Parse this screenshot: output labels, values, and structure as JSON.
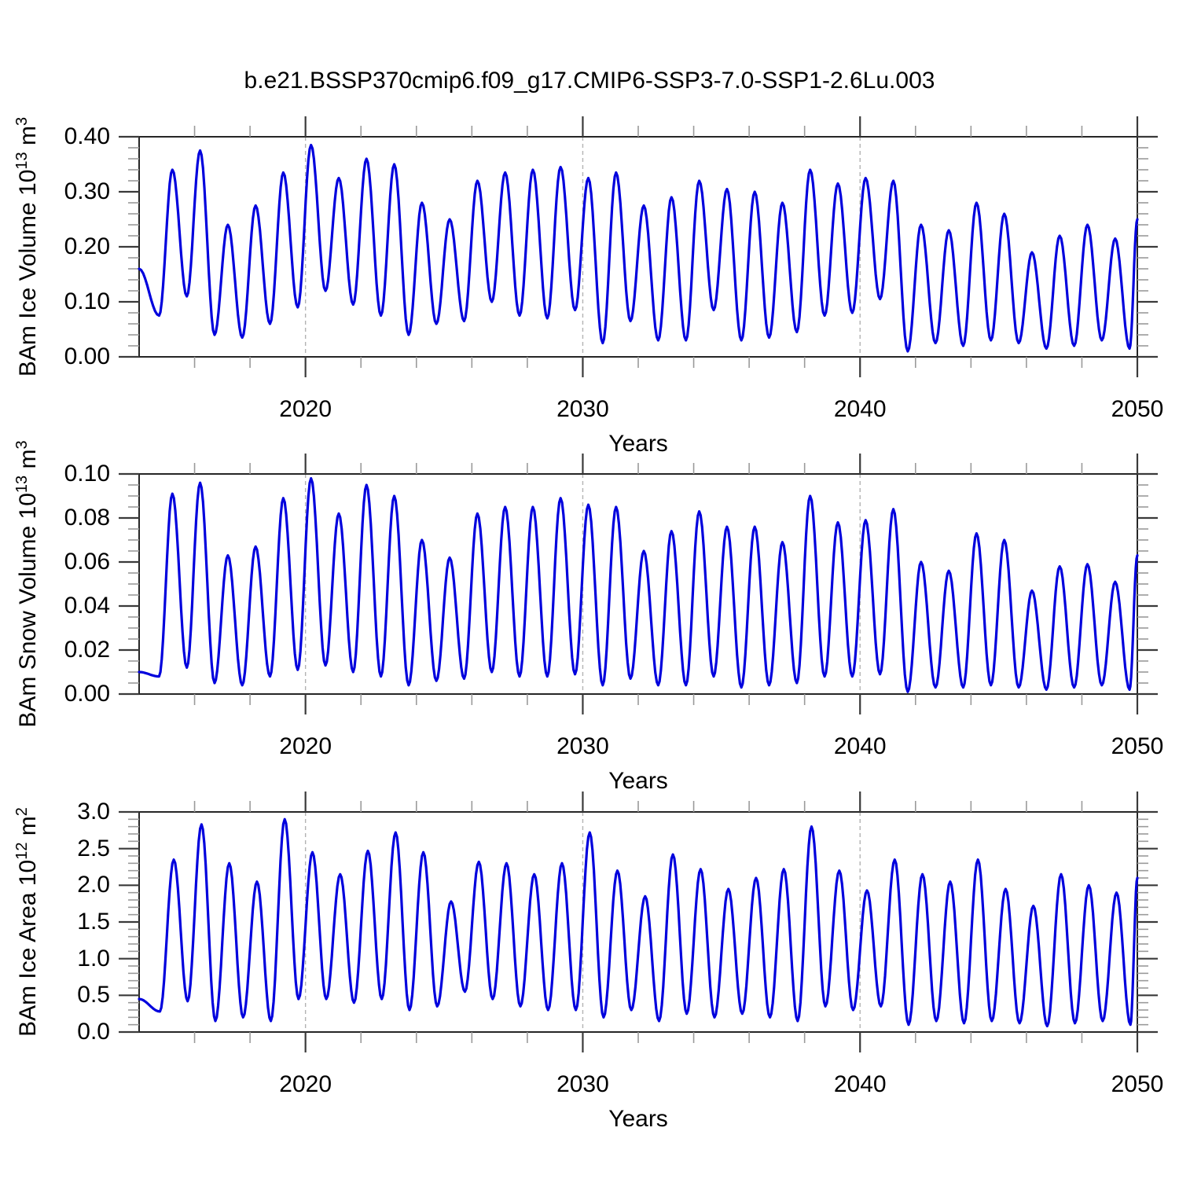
{
  "title": "b.e21.BSSP370cmip6.f09_g17.CMIP6-SSP3-7.0-SSP1-2.6Lu.003",
  "line_color": "#0000dd",
  "gridline_color": "#b3b3b3",
  "axis_color": "#262626",
  "chart_data": [
    {
      "type": "line",
      "ylabel": "BAm Ice Volume 10^13 m^3",
      "ylabel_segments": [
        "BAm Ice Volume 10",
        {
          "sup": "13"
        },
        " m",
        {
          "sup": "3"
        }
      ],
      "xlabel": "Years",
      "xlim": [
        2014,
        2050
      ],
      "ylim": [
        0.0,
        0.4
      ],
      "xticks": [
        2020,
        2030,
        2040,
        2050
      ],
      "xtick_labels": [
        "2020",
        "2030",
        "2040",
        "2050"
      ],
      "x_minor_step": 2,
      "gridlines_x": [
        2020,
        2030,
        2040
      ],
      "ytick_values": [
        0.0,
        0.1,
        0.2,
        0.3,
        0.4
      ],
      "yticks": [
        "0.00",
        "0.10",
        "0.20",
        "0.30",
        "0.40"
      ],
      "y_minor_step": 0.02,
      "grid": "dashed-vertical-at-decades",
      "legend": "none",
      "series": [
        {
          "name": "BAm Ice Volume",
          "color": "#0000dd",
          "extremes": [
            [
              2014.0,
              0.16
            ],
            [
              2014.72,
              0.075
            ],
            [
              2015.2,
              0.34
            ],
            [
              2015.72,
              0.11
            ],
            [
              2016.2,
              0.375
            ],
            [
              2016.72,
              0.04
            ],
            [
              2017.2,
              0.24
            ],
            [
              2017.72,
              0.035
            ],
            [
              2018.2,
              0.275
            ],
            [
              2018.72,
              0.06
            ],
            [
              2019.2,
              0.335
            ],
            [
              2019.72,
              0.09
            ],
            [
              2020.2,
              0.385
            ],
            [
              2020.72,
              0.12
            ],
            [
              2021.2,
              0.325
            ],
            [
              2021.72,
              0.095
            ],
            [
              2022.2,
              0.36
            ],
            [
              2022.72,
              0.075
            ],
            [
              2023.2,
              0.35
            ],
            [
              2023.72,
              0.04
            ],
            [
              2024.2,
              0.28
            ],
            [
              2024.72,
              0.06
            ],
            [
              2025.2,
              0.25
            ],
            [
              2025.72,
              0.065
            ],
            [
              2026.2,
              0.32
            ],
            [
              2026.72,
              0.1
            ],
            [
              2027.2,
              0.335
            ],
            [
              2027.72,
              0.075
            ],
            [
              2028.2,
              0.34
            ],
            [
              2028.72,
              0.07
            ],
            [
              2029.2,
              0.345
            ],
            [
              2029.72,
              0.085
            ],
            [
              2030.2,
              0.325
            ],
            [
              2030.72,
              0.025
            ],
            [
              2031.2,
              0.335
            ],
            [
              2031.72,
              0.065
            ],
            [
              2032.2,
              0.275
            ],
            [
              2032.72,
              0.03
            ],
            [
              2033.2,
              0.29
            ],
            [
              2033.72,
              0.03
            ],
            [
              2034.2,
              0.32
            ],
            [
              2034.72,
              0.085
            ],
            [
              2035.2,
              0.305
            ],
            [
              2035.72,
              0.03
            ],
            [
              2036.2,
              0.3
            ],
            [
              2036.72,
              0.035
            ],
            [
              2037.2,
              0.28
            ],
            [
              2037.72,
              0.045
            ],
            [
              2038.2,
              0.34
            ],
            [
              2038.72,
              0.075
            ],
            [
              2039.2,
              0.315
            ],
            [
              2039.72,
              0.08
            ],
            [
              2040.2,
              0.325
            ],
            [
              2040.72,
              0.105
            ],
            [
              2041.2,
              0.32
            ],
            [
              2041.72,
              0.01
            ],
            [
              2042.2,
              0.24
            ],
            [
              2042.72,
              0.025
            ],
            [
              2043.2,
              0.23
            ],
            [
              2043.72,
              0.02
            ],
            [
              2044.2,
              0.28
            ],
            [
              2044.72,
              0.03
            ],
            [
              2045.2,
              0.26
            ],
            [
              2045.72,
              0.025
            ],
            [
              2046.2,
              0.19
            ],
            [
              2046.72,
              0.015
            ],
            [
              2047.2,
              0.22
            ],
            [
              2047.72,
              0.02
            ],
            [
              2048.2,
              0.24
            ],
            [
              2048.72,
              0.03
            ],
            [
              2049.2,
              0.215
            ],
            [
              2049.72,
              0.015
            ],
            [
              2050.0,
              0.25
            ]
          ]
        }
      ]
    },
    {
      "type": "line",
      "ylabel": "BAm Snow Volume 10^13 m^3",
      "ylabel_segments": [
        "BAm Snow Volume 10",
        {
          "sup": "13"
        },
        " m",
        {
          "sup": "3"
        }
      ],
      "xlabel": "Years",
      "xlim": [
        2014,
        2050
      ],
      "ylim": [
        0.0,
        0.1
      ],
      "xticks": [
        2020,
        2030,
        2040,
        2050
      ],
      "xtick_labels": [
        "2020",
        "2030",
        "2040",
        "2050"
      ],
      "x_minor_step": 2,
      "gridlines_x": [
        2020,
        2030,
        2040
      ],
      "ytick_values": [
        0.0,
        0.02,
        0.04,
        0.06,
        0.08,
        0.1
      ],
      "yticks": [
        "0.00",
        "0.02",
        "0.04",
        "0.06",
        "0.08",
        "0.10"
      ],
      "y_minor_step": 0.005,
      "grid": "dashed-vertical-at-decades",
      "legend": "none",
      "series": [
        {
          "name": "BAm Snow Volume",
          "color": "#0000dd",
          "extremes": [
            [
              2014.0,
              0.01
            ],
            [
              2014.72,
              0.008
            ],
            [
              2015.2,
              0.091
            ],
            [
              2015.72,
              0.012
            ],
            [
              2016.2,
              0.096
            ],
            [
              2016.72,
              0.005
            ],
            [
              2017.2,
              0.063
            ],
            [
              2017.72,
              0.004
            ],
            [
              2018.2,
              0.067
            ],
            [
              2018.72,
              0.008
            ],
            [
              2019.2,
              0.089
            ],
            [
              2019.72,
              0.011
            ],
            [
              2020.2,
              0.098
            ],
            [
              2020.72,
              0.013
            ],
            [
              2021.2,
              0.082
            ],
            [
              2021.72,
              0.01
            ],
            [
              2022.2,
              0.095
            ],
            [
              2022.72,
              0.008
            ],
            [
              2023.2,
              0.09
            ],
            [
              2023.72,
              0.004
            ],
            [
              2024.2,
              0.07
            ],
            [
              2024.72,
              0.006
            ],
            [
              2025.2,
              0.062
            ],
            [
              2025.72,
              0.007
            ],
            [
              2026.2,
              0.082
            ],
            [
              2026.72,
              0.01
            ],
            [
              2027.2,
              0.085
            ],
            [
              2027.72,
              0.008
            ],
            [
              2028.2,
              0.085
            ],
            [
              2028.72,
              0.008
            ],
            [
              2029.2,
              0.089
            ],
            [
              2029.72,
              0.009
            ],
            [
              2030.2,
              0.086
            ],
            [
              2030.72,
              0.004
            ],
            [
              2031.2,
              0.085
            ],
            [
              2031.72,
              0.007
            ],
            [
              2032.2,
              0.065
            ],
            [
              2032.72,
              0.004
            ],
            [
              2033.2,
              0.074
            ],
            [
              2033.72,
              0.004
            ],
            [
              2034.2,
              0.083
            ],
            [
              2034.72,
              0.008
            ],
            [
              2035.2,
              0.076
            ],
            [
              2035.72,
              0.003
            ],
            [
              2036.2,
              0.076
            ],
            [
              2036.72,
              0.004
            ],
            [
              2037.2,
              0.069
            ],
            [
              2037.72,
              0.005
            ],
            [
              2038.2,
              0.09
            ],
            [
              2038.72,
              0.008
            ],
            [
              2039.2,
              0.078
            ],
            [
              2039.72,
              0.008
            ],
            [
              2040.2,
              0.079
            ],
            [
              2040.72,
              0.009
            ],
            [
              2041.2,
              0.084
            ],
            [
              2041.72,
              0.001
            ],
            [
              2042.2,
              0.06
            ],
            [
              2042.72,
              0.003
            ],
            [
              2043.2,
              0.056
            ],
            [
              2043.72,
              0.003
            ],
            [
              2044.2,
              0.073
            ],
            [
              2044.72,
              0.004
            ],
            [
              2045.2,
              0.07
            ],
            [
              2045.72,
              0.003
            ],
            [
              2046.2,
              0.047
            ],
            [
              2046.72,
              0.002
            ],
            [
              2047.2,
              0.058
            ],
            [
              2047.72,
              0.003
            ],
            [
              2048.2,
              0.059
            ],
            [
              2048.72,
              0.004
            ],
            [
              2049.2,
              0.051
            ],
            [
              2049.72,
              0.002
            ],
            [
              2050.0,
              0.063
            ]
          ]
        }
      ]
    },
    {
      "type": "line",
      "ylabel": "BAm Ice Area 10^12 m^2",
      "ylabel_segments": [
        "BAm Ice Area 10",
        {
          "sup": "12"
        },
        " m",
        {
          "sup": "2"
        }
      ],
      "xlabel": "Years",
      "xlim": [
        2014,
        2050
      ],
      "ylim": [
        0.0,
        3.0
      ],
      "xticks": [
        2020,
        2030,
        2040,
        2050
      ],
      "xtick_labels": [
        "2020",
        "2030",
        "2040",
        "2050"
      ],
      "x_minor_step": 2,
      "gridlines_x": [
        2020,
        2030,
        2040
      ],
      "ytick_values": [
        0.0,
        0.5,
        1.0,
        1.5,
        2.0,
        2.5,
        3.0
      ],
      "yticks": [
        "0.0",
        "0.5",
        "1.0",
        "1.5",
        "2.0",
        "2.5",
        "3.0"
      ],
      "y_minor_step": 0.1,
      "grid": "dashed-vertical-at-decades",
      "legend": "none",
      "series": [
        {
          "name": "BAm Ice Area",
          "color": "#0000dd",
          "extremes": [
            [
              2014.0,
              0.45
            ],
            [
              2014.75,
              0.28
            ],
            [
              2015.25,
              2.35
            ],
            [
              2015.75,
              0.42
            ],
            [
              2016.25,
              2.83
            ],
            [
              2016.75,
              0.15
            ],
            [
              2017.25,
              2.3
            ],
            [
              2017.75,
              0.2
            ],
            [
              2018.25,
              2.05
            ],
            [
              2018.75,
              0.15
            ],
            [
              2019.25,
              2.9
            ],
            [
              2019.75,
              0.45
            ],
            [
              2020.25,
              2.45
            ],
            [
              2020.75,
              0.45
            ],
            [
              2021.25,
              2.15
            ],
            [
              2021.75,
              0.4
            ],
            [
              2022.25,
              2.47
            ],
            [
              2022.75,
              0.45
            ],
            [
              2023.25,
              2.72
            ],
            [
              2023.75,
              0.3
            ],
            [
              2024.25,
              2.45
            ],
            [
              2024.75,
              0.35
            ],
            [
              2025.25,
              1.78
            ],
            [
              2025.75,
              0.55
            ],
            [
              2026.25,
              2.32
            ],
            [
              2026.75,
              0.45
            ],
            [
              2027.25,
              2.3
            ],
            [
              2027.75,
              0.35
            ],
            [
              2028.25,
              2.15
            ],
            [
              2028.75,
              0.3
            ],
            [
              2029.25,
              2.3
            ],
            [
              2029.75,
              0.3
            ],
            [
              2030.25,
              2.72
            ],
            [
              2030.75,
              0.2
            ],
            [
              2031.25,
              2.2
            ],
            [
              2031.75,
              0.3
            ],
            [
              2032.25,
              1.85
            ],
            [
              2032.75,
              0.15
            ],
            [
              2033.25,
              2.42
            ],
            [
              2033.75,
              0.25
            ],
            [
              2034.25,
              2.22
            ],
            [
              2034.75,
              0.2
            ],
            [
              2035.25,
              1.95
            ],
            [
              2035.75,
              0.25
            ],
            [
              2036.25,
              2.1
            ],
            [
              2036.75,
              0.2
            ],
            [
              2037.25,
              2.22
            ],
            [
              2037.75,
              0.15
            ],
            [
              2038.25,
              2.8
            ],
            [
              2038.75,
              0.35
            ],
            [
              2039.25,
              2.2
            ],
            [
              2039.75,
              0.3
            ],
            [
              2040.25,
              1.93
            ],
            [
              2040.75,
              0.35
            ],
            [
              2041.25,
              2.35
            ],
            [
              2041.75,
              0.1
            ],
            [
              2042.25,
              2.15
            ],
            [
              2042.75,
              0.15
            ],
            [
              2043.25,
              2.05
            ],
            [
              2043.75,
              0.12
            ],
            [
              2044.25,
              2.35
            ],
            [
              2044.75,
              0.15
            ],
            [
              2045.25,
              1.95
            ],
            [
              2045.75,
              0.12
            ],
            [
              2046.25,
              1.72
            ],
            [
              2046.75,
              0.08
            ],
            [
              2047.25,
              2.15
            ],
            [
              2047.75,
              0.12
            ],
            [
              2048.25,
              2.0
            ],
            [
              2048.75,
              0.15
            ],
            [
              2049.25,
              1.9
            ],
            [
              2049.75,
              0.1
            ],
            [
              2050.0,
              2.1
            ]
          ]
        }
      ]
    }
  ]
}
